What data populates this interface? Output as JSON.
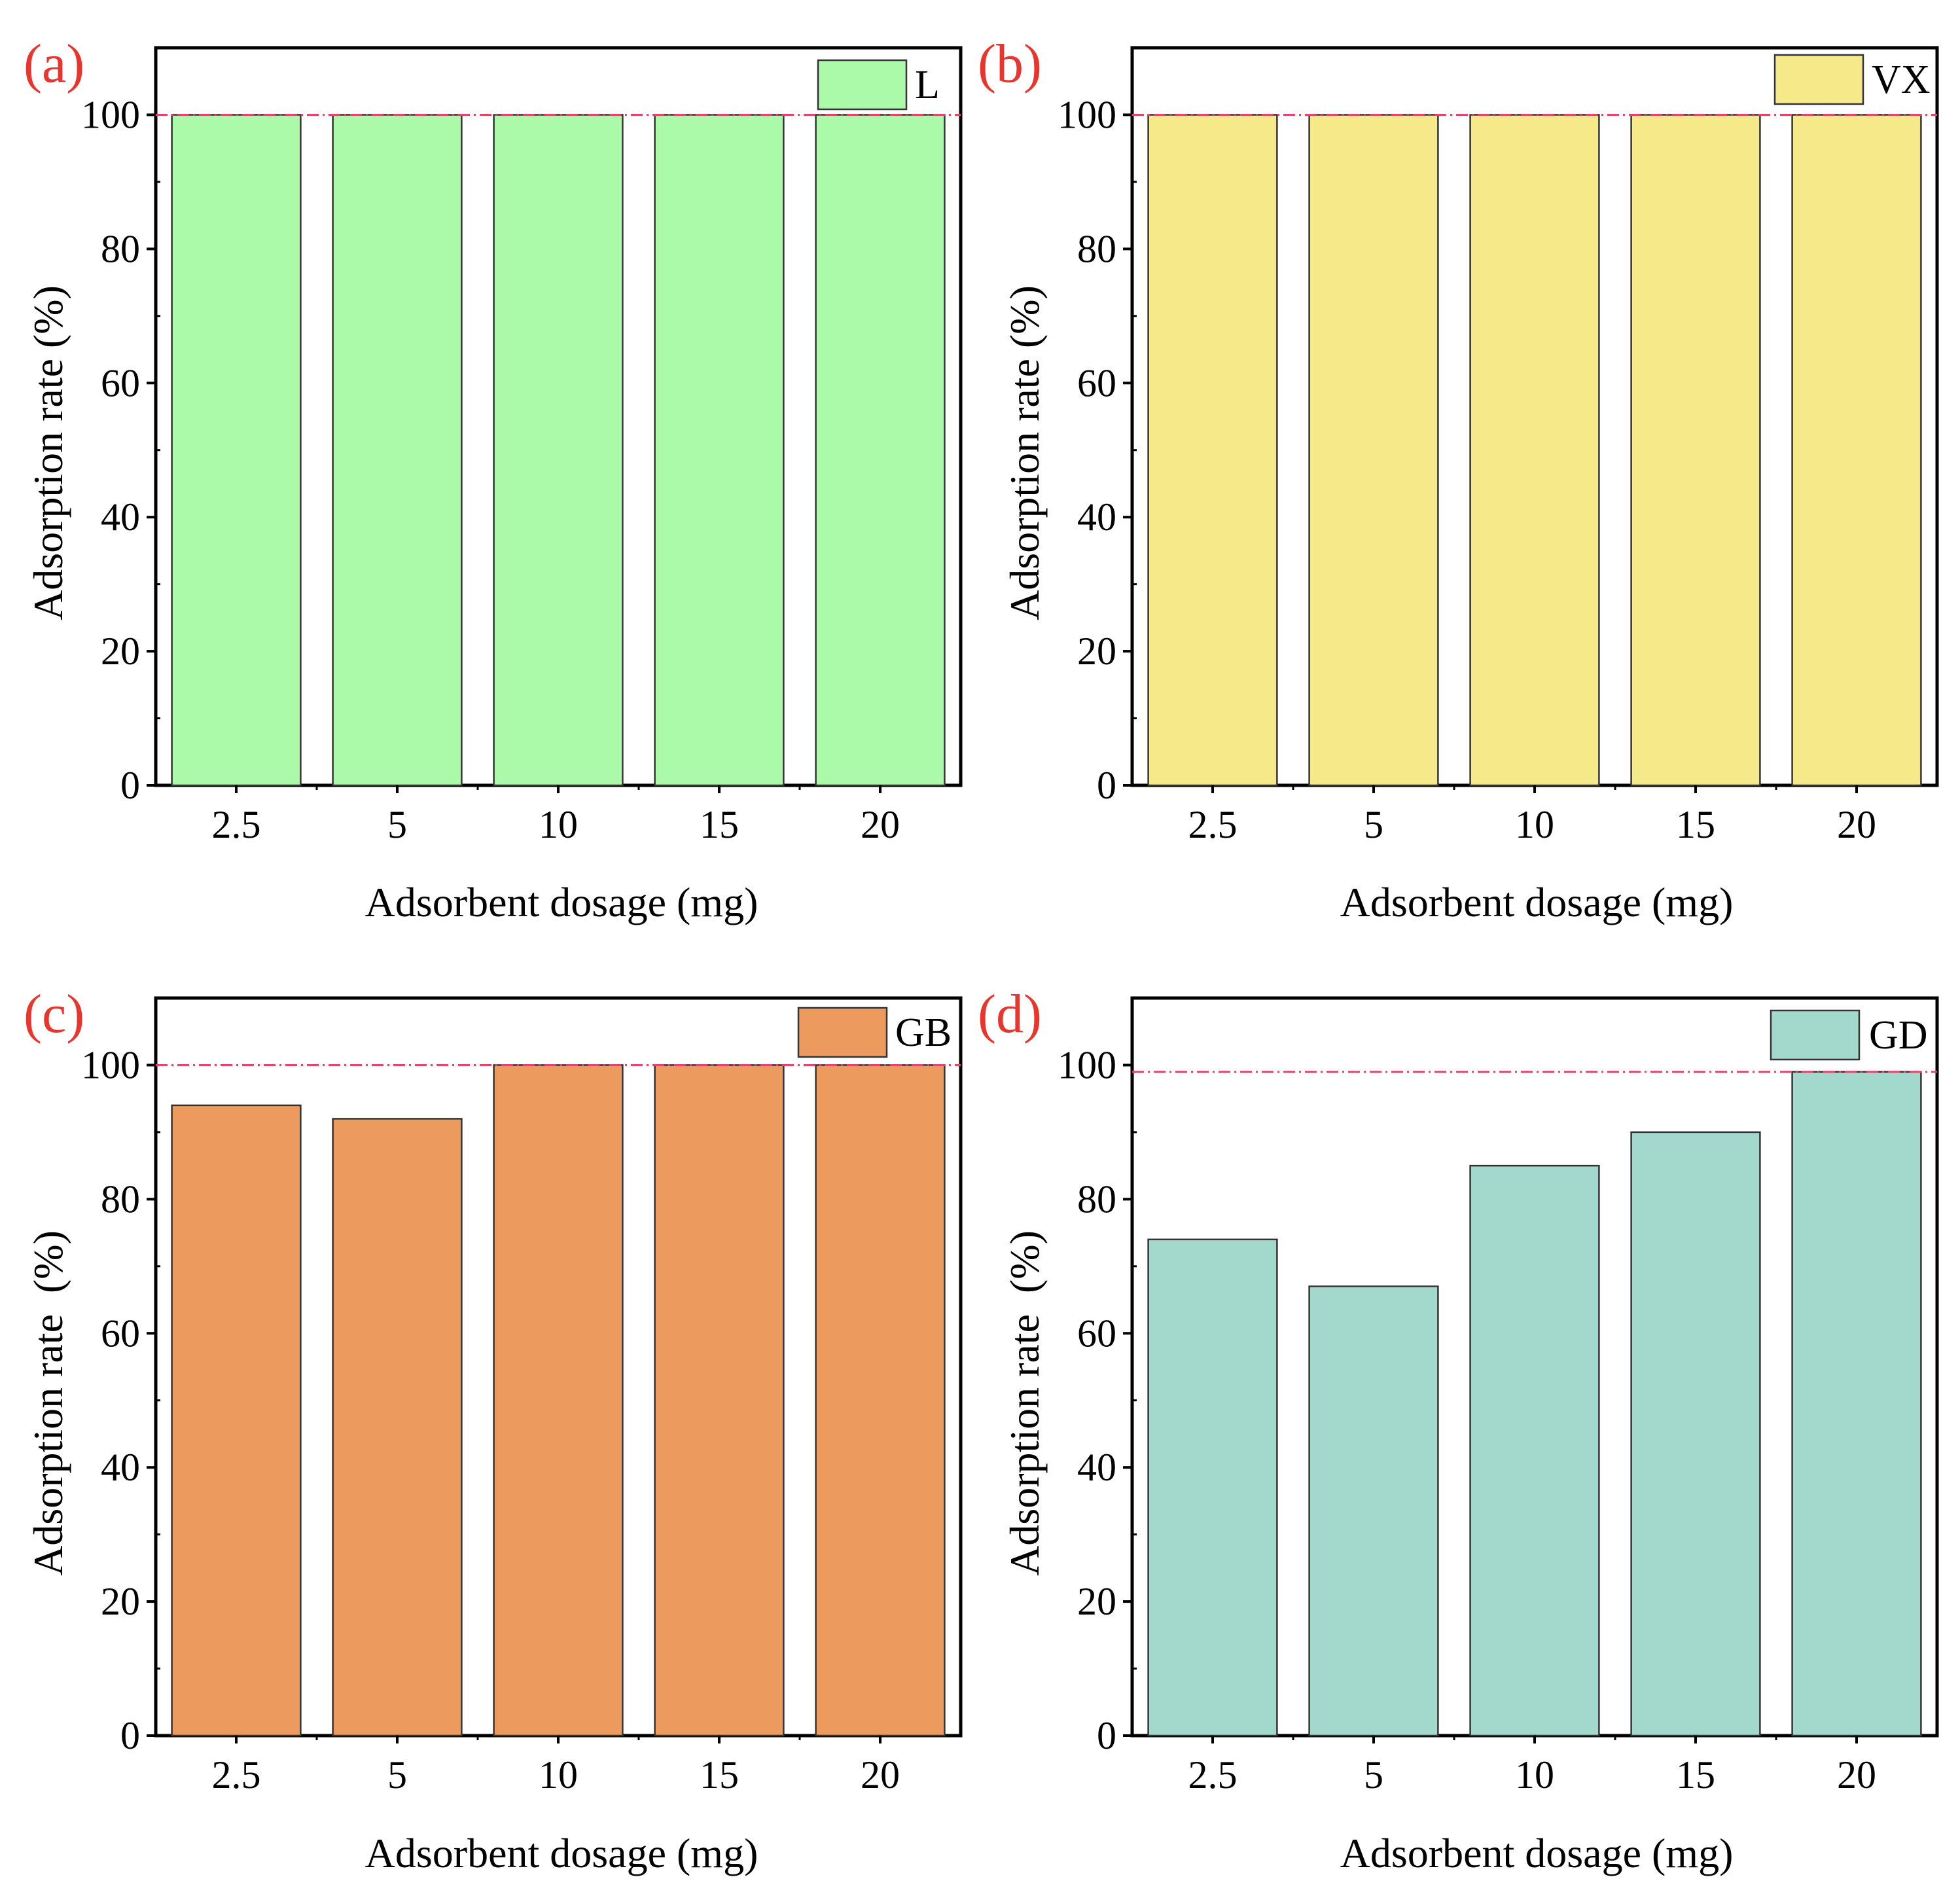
{
  "chart_data": [
    {
      "type": "bar",
      "panel_label": "(a)",
      "categories": [
        "2.5",
        "5",
        "10",
        "15",
        "20"
      ],
      "series": [
        {
          "name": "L",
          "values": [
            100,
            100,
            100,
            100,
            100
          ],
          "color": "#aafaaa"
        }
      ],
      "reference_line": 100,
      "xlabel": "Adsorbent dosage (mg)",
      "ylabel": "Adsorption rate (%)",
      "ylim": [
        0,
        110
      ],
      "yticks": [
        0,
        20,
        40,
        60,
        80,
        100
      ],
      "legend_position": "top-right",
      "grid": false
    },
    {
      "type": "bar",
      "panel_label": "(b)",
      "categories": [
        "2.5",
        "5",
        "10",
        "15",
        "20"
      ],
      "series": [
        {
          "name": "VX",
          "values": [
            100,
            100,
            100,
            100,
            100
          ],
          "color": "#f5e98a"
        }
      ],
      "reference_line": 100,
      "xlabel": "Adsorbent dosage (mg)",
      "ylabel": "Adsorption rate (%)",
      "ylim": [
        0,
        110
      ],
      "yticks": [
        0,
        20,
        40,
        60,
        80,
        100
      ],
      "legend_position": "top-right",
      "grid": false
    },
    {
      "type": "bar",
      "panel_label": "(c)",
      "categories": [
        "2.5",
        "5",
        "10",
        "15",
        "20"
      ],
      "series": [
        {
          "name": "GB",
          "values": [
            94,
            92,
            100,
            100,
            100
          ],
          "color": "#ec9a5e"
        }
      ],
      "reference_line": 100,
      "xlabel": "Adsorbent dosage (mg)",
      "ylabel": "Adsorption rate  (%)",
      "ylim": [
        0,
        110
      ],
      "yticks": [
        0,
        20,
        40,
        60,
        80,
        100
      ],
      "legend_position": "top-right",
      "grid": false
    },
    {
      "type": "bar",
      "panel_label": "(d)",
      "categories": [
        "2.5",
        "5",
        "10",
        "15",
        "20"
      ],
      "series": [
        {
          "name": "GD",
          "values": [
            74,
            67,
            85,
            90,
            99
          ],
          "color": "#a3d8cc"
        }
      ],
      "reference_line": 99,
      "xlabel": "Adsorbent dosage (mg)",
      "ylabel": "Adsorption rate  (%)",
      "ylim": [
        0,
        110
      ],
      "yticks": [
        0,
        20,
        40,
        60,
        80,
        100
      ],
      "legend_position": "top-right",
      "grid": false
    }
  ],
  "colors": {
    "reference_line": "#e8436a",
    "panel_label": "#e8352e",
    "axis": "#000000",
    "bar_edge": "#333333"
  }
}
